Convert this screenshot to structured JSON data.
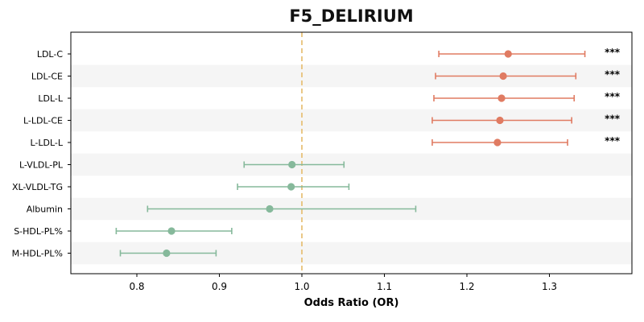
{
  "chart_data": {
    "type": "forest",
    "title": "F5_DELIRIUM",
    "xlabel": "Odds Ratio (OR)",
    "ylabel": "",
    "xlim": [
      0.72,
      1.4
    ],
    "xticks": [
      0.8,
      0.9,
      1.0,
      1.1,
      1.2,
      1.3
    ],
    "xtick_labels": [
      "0.8",
      "0.9",
      "1.0",
      "1.1",
      "1.2",
      "1.3"
    ],
    "reference_line": 1.0,
    "grid": false,
    "colors": {
      "significant": "#e07b62",
      "non_significant": "#86b99b",
      "reference_line": "#e8c27a",
      "stripe": "#f5f5f5"
    },
    "rows": [
      {
        "label": "LDL-C",
        "or": 1.25,
        "lower": 1.166,
        "upper": 1.343,
        "significance": "***"
      },
      {
        "label": "LDL-CE",
        "or": 1.244,
        "lower": 1.162,
        "upper": 1.332,
        "significance": "***"
      },
      {
        "label": "LDL-L",
        "or": 1.242,
        "lower": 1.16,
        "upper": 1.33,
        "significance": "***"
      },
      {
        "label": "L-LDL-CE",
        "or": 1.24,
        "lower": 1.158,
        "upper": 1.327,
        "significance": "***"
      },
      {
        "label": "L-LDL-L",
        "or": 1.237,
        "lower": 1.158,
        "upper": 1.322,
        "significance": "***"
      },
      {
        "label": "L-VLDL-PL",
        "or": 0.988,
        "lower": 0.93,
        "upper": 1.051,
        "significance": ""
      },
      {
        "label": "XL-VLDL-TG",
        "or": 0.987,
        "lower": 0.922,
        "upper": 1.057,
        "significance": ""
      },
      {
        "label": "Albumin",
        "or": 0.961,
        "lower": 0.813,
        "upper": 1.138,
        "significance": ""
      },
      {
        "label": "S-HDL-PL%",
        "or": 0.842,
        "lower": 0.775,
        "upper": 0.915,
        "significance": ""
      },
      {
        "label": "M-HDL-PL%",
        "or": 0.836,
        "lower": 0.78,
        "upper": 0.896,
        "significance": ""
      }
    ]
  }
}
